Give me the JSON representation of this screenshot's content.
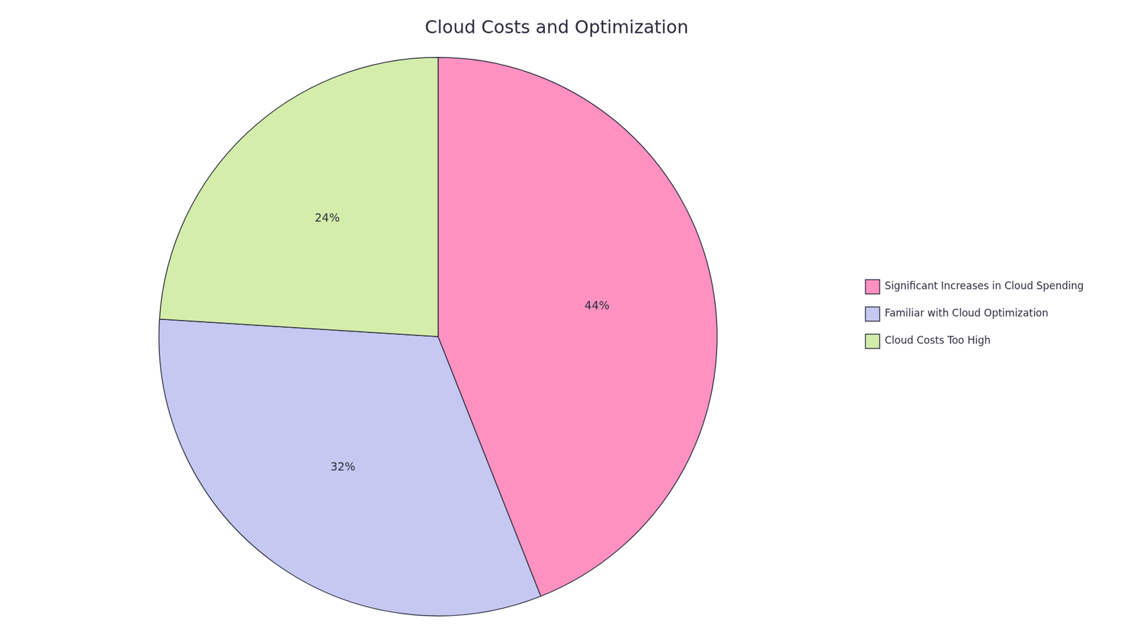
{
  "chart_data": {
    "type": "pie",
    "title": "Cloud Costs and Optimization",
    "categories": [
      "Significant Increases in Cloud Spending",
      "Familiar with Cloud Optimization",
      "Cloud Costs Too High"
    ],
    "values": [
      44,
      32,
      24
    ],
    "value_labels": [
      "44%",
      "32%",
      "24%"
    ],
    "colors": [
      "#FF91C1",
      "#C5C8F0",
      "#D4EDAA"
    ],
    "data_labels": true,
    "legend": "right"
  }
}
